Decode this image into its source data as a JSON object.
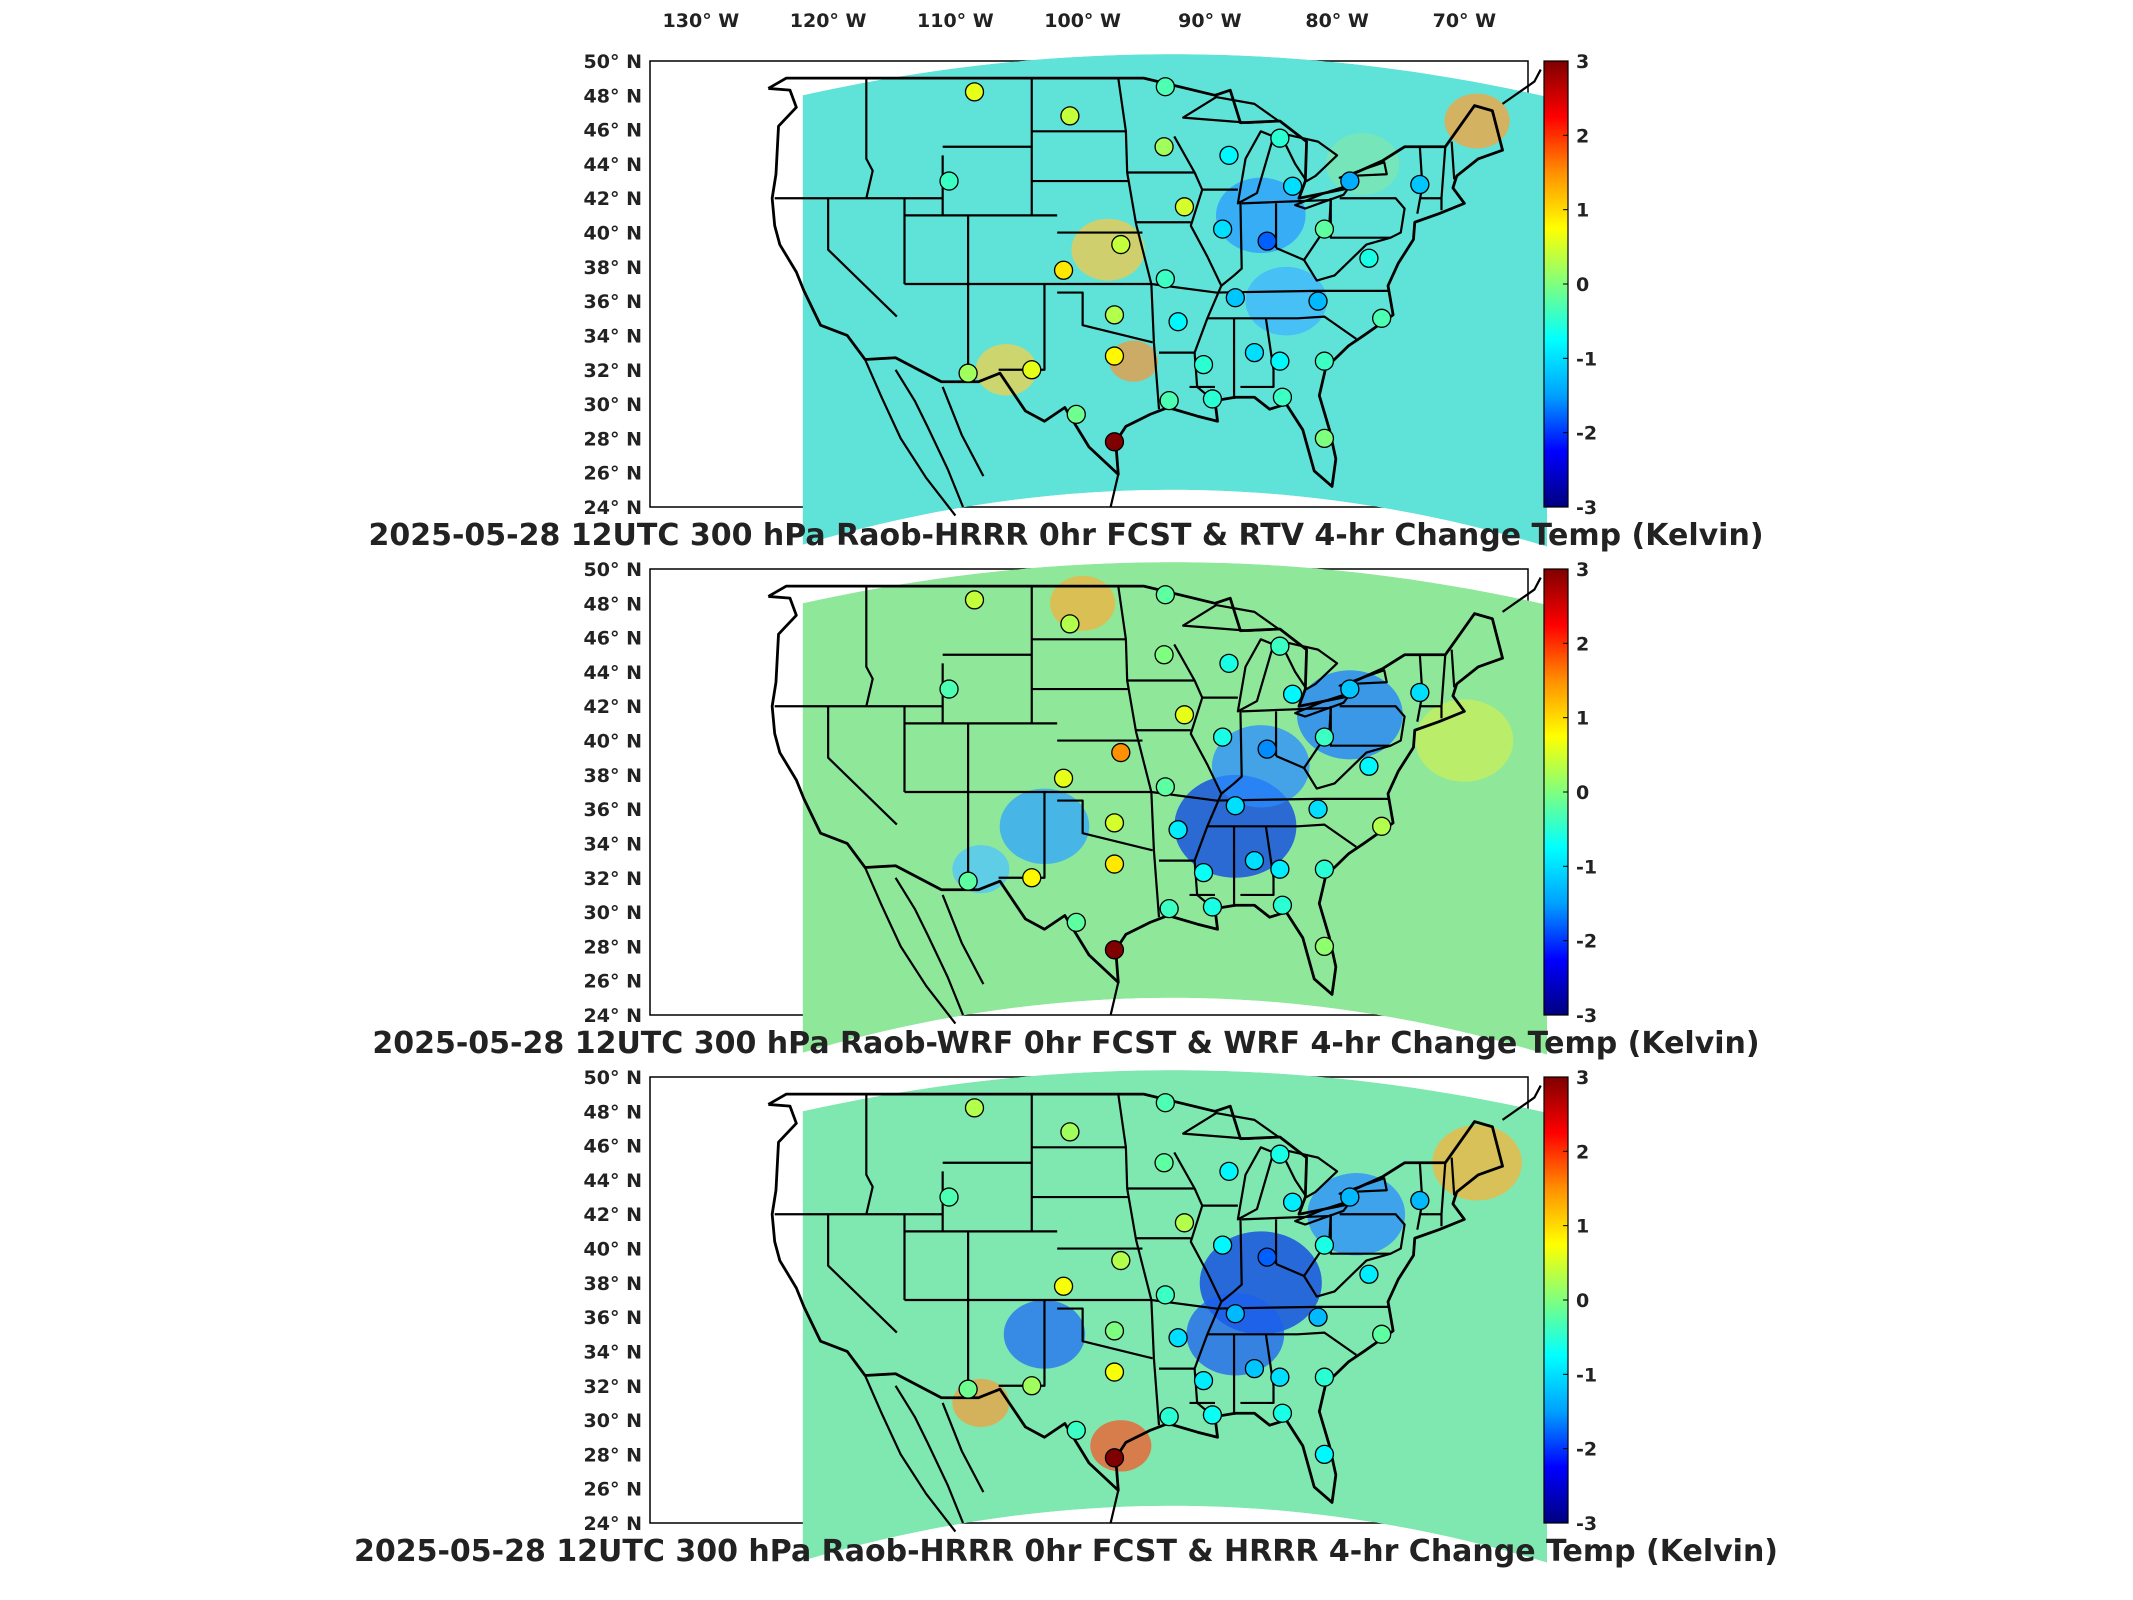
{
  "lon_labels": [
    "130° W",
    "120° W",
    "110° W",
    "100° W",
    "90° W",
    "80° W",
    "70° W"
  ],
  "lat_labels": [
    "50° N",
    "48° N",
    "46° N",
    "44° N",
    "42° N",
    "40° N",
    "38° N",
    "36° N",
    "34° N",
    "32° N",
    "30° N",
    "28° N",
    "26° N",
    "24° N"
  ],
  "colorbar": {
    "ticks": [
      "3",
      "2",
      "1",
      "0",
      "-1",
      "-2",
      "-3"
    ],
    "min": -3,
    "max": 3,
    "colormap": "jet",
    "colors": [
      "#00007f",
      "#0000ff",
      "#00a0ff",
      "#00ffff",
      "#7fff7f",
      "#ffff00",
      "#ff9000",
      "#ff0000",
      "#7f0000"
    ]
  },
  "panels": [
    {
      "title": "2025-05-28 12UTC 300 hPa Raob-HRRR 0hr FCST & RTV 4-hr Change Temp (Kelvin)",
      "field_color": "#5fe3d8",
      "blotches": [
        {
          "lon": -86,
          "lat": 41,
          "r": 2.2,
          "color": "#2a9bff"
        },
        {
          "lon": -98,
          "lat": 39,
          "r": 1.8,
          "color": "#f5c84a"
        },
        {
          "lon": -69,
          "lat": 46.5,
          "r": 1.6,
          "color": "#f9a23a"
        },
        {
          "lon": -106,
          "lat": 32,
          "r": 1.5,
          "color": "#f1d04b"
        },
        {
          "lon": -96,
          "lat": 32.5,
          "r": 1.2,
          "color": "#ef9840"
        },
        {
          "lon": -84,
          "lat": 36,
          "r": 2.0,
          "color": "#3fb4ff"
        },
        {
          "lon": -78,
          "lat": 44,
          "r": 1.8,
          "color": "#7fe6b0"
        }
      ],
      "stations": [
        {
          "lon": -108.5,
          "lat": 48.2,
          "v": 0.6
        },
        {
          "lon": -101,
          "lat": 46.8,
          "v": 0.4
        },
        {
          "lon": -93.5,
          "lat": 48.5,
          "v": -0.3
        },
        {
          "lon": -93.6,
          "lat": 45,
          "v": 0.2
        },
        {
          "lon": -88.5,
          "lat": 44.5,
          "v": -0.8
        },
        {
          "lon": -84.5,
          "lat": 45.5,
          "v": -0.5
        },
        {
          "lon": -83.5,
          "lat": 42.7,
          "v": -1.0
        },
        {
          "lon": -79,
          "lat": 43,
          "v": -1.4
        },
        {
          "lon": -73.5,
          "lat": 42.8,
          "v": -1.2
        },
        {
          "lon": -110.5,
          "lat": 43,
          "v": -0.4
        },
        {
          "lon": -92,
          "lat": 41.5,
          "v": 0.5
        },
        {
          "lon": -89,
          "lat": 40.2,
          "v": -1.0
        },
        {
          "lon": -85.5,
          "lat": 39.5,
          "v": -1.8
        },
        {
          "lon": -81,
          "lat": 40.2,
          "v": -0.2
        },
        {
          "lon": -97,
          "lat": 39.3,
          "v": 0.4
        },
        {
          "lon": -101.5,
          "lat": 37.8,
          "v": 0.9
        },
        {
          "lon": -93.5,
          "lat": 37.3,
          "v": -0.4
        },
        {
          "lon": -77.5,
          "lat": 38.5,
          "v": -0.6
        },
        {
          "lon": -97.5,
          "lat": 35.2,
          "v": 0.3
        },
        {
          "lon": -92.5,
          "lat": 34.8,
          "v": -0.8
        },
        {
          "lon": -88,
          "lat": 36.2,
          "v": -1.2
        },
        {
          "lon": -81.5,
          "lat": 36,
          "v": -1.3
        },
        {
          "lon": -76.5,
          "lat": 35,
          "v": -0.3
        },
        {
          "lon": -104,
          "lat": 32,
          "v": 0.6
        },
        {
          "lon": -109,
          "lat": 31.8,
          "v": 0.2
        },
        {
          "lon": -97.5,
          "lat": 32.8,
          "v": 0.8
        },
        {
          "lon": -90.5,
          "lat": 32.3,
          "v": -0.5
        },
        {
          "lon": -86.5,
          "lat": 33,
          "v": -1.0
        },
        {
          "lon": -84.5,
          "lat": 32.5,
          "v": -0.8
        },
        {
          "lon": -81,
          "lat": 32.5,
          "v": -0.4
        },
        {
          "lon": -100.5,
          "lat": 29.4,
          "v": -0.1
        },
        {
          "lon": -97.5,
          "lat": 27.8,
          "v": 3.0
        },
        {
          "lon": -93.2,
          "lat": 30.2,
          "v": -0.3
        },
        {
          "lon": -89.8,
          "lat": 30.3,
          "v": -0.5
        },
        {
          "lon": -84.3,
          "lat": 30.4,
          "v": -0.4
        },
        {
          "lon": -81,
          "lat": 28,
          "v": 0.0
        }
      ]
    },
    {
      "title": "2025-05-28 12UTC 300 hPa Raob-WRF 0hr FCST & WRF 4-hr Change Temp (Kelvin)",
      "field_color": "#8fe89a",
      "blotches": [
        {
          "lon": -88,
          "lat": 35,
          "r": 3.0,
          "color": "#0a3fe6"
        },
        {
          "lon": -79,
          "lat": 41.5,
          "r": 2.6,
          "color": "#1d7dff"
        },
        {
          "lon": -86,
          "lat": 38.5,
          "r": 2.4,
          "color": "#2a8cff"
        },
        {
          "lon": -103,
          "lat": 35,
          "r": 2.2,
          "color": "#2fa6ff"
        },
        {
          "lon": -100,
          "lat": 48,
          "r": 1.6,
          "color": "#f3b23c"
        },
        {
          "lon": -70,
          "lat": 40,
          "r": 2.4,
          "color": "#c8f05a"
        },
        {
          "lon": -108,
          "lat": 32.5,
          "r": 1.4,
          "color": "#4fc4ff"
        }
      ],
      "stations": [
        {
          "lon": -108.5,
          "lat": 48.2,
          "v": 0.4
        },
        {
          "lon": -101,
          "lat": 46.8,
          "v": 0.3
        },
        {
          "lon": -93.5,
          "lat": 48.5,
          "v": -0.2
        },
        {
          "lon": -93.6,
          "lat": 45,
          "v": 0.0
        },
        {
          "lon": -88.5,
          "lat": 44.5,
          "v": -0.6
        },
        {
          "lon": -84.5,
          "lat": 45.5,
          "v": -0.4
        },
        {
          "lon": -83.5,
          "lat": 42.7,
          "v": -0.8
        },
        {
          "lon": -79,
          "lat": 43,
          "v": -1.2
        },
        {
          "lon": -73.5,
          "lat": 42.8,
          "v": -1.0
        },
        {
          "lon": -110.5,
          "lat": 43,
          "v": -0.3
        },
        {
          "lon": -92,
          "lat": 41.5,
          "v": 0.6
        },
        {
          "lon": -89,
          "lat": 40.2,
          "v": -0.6
        },
        {
          "lon": -85.5,
          "lat": 39.5,
          "v": -1.6
        },
        {
          "lon": -81,
          "lat": 40.2,
          "v": -0.4
        },
        {
          "lon": -97,
          "lat": 39.3,
          "v": 1.5
        },
        {
          "lon": -101.5,
          "lat": 37.8,
          "v": 0.6
        },
        {
          "lon": -93.5,
          "lat": 37.3,
          "v": -0.2
        },
        {
          "lon": -77.5,
          "lat": 38.5,
          "v": -0.8
        },
        {
          "lon": -97.5,
          "lat": 35.2,
          "v": 0.5
        },
        {
          "lon": -92.5,
          "lat": 34.8,
          "v": -0.9
        },
        {
          "lon": -88,
          "lat": 36.2,
          "v": -1.0
        },
        {
          "lon": -81.5,
          "lat": 36,
          "v": -1.0
        },
        {
          "lon": -76.5,
          "lat": 35,
          "v": 0.3
        },
        {
          "lon": -104,
          "lat": 32,
          "v": 0.8
        },
        {
          "lon": -109,
          "lat": 31.8,
          "v": -0.2
        },
        {
          "lon": -97.5,
          "lat": 32.8,
          "v": 0.9
        },
        {
          "lon": -90.5,
          "lat": 32.3,
          "v": -0.7
        },
        {
          "lon": -86.5,
          "lat": 33,
          "v": -1.0
        },
        {
          "lon": -84.5,
          "lat": 32.5,
          "v": -0.9
        },
        {
          "lon": -81,
          "lat": 32.5,
          "v": -0.5
        },
        {
          "lon": -100.5,
          "lat": 29.4,
          "v": -0.2
        },
        {
          "lon": -97.5,
          "lat": 27.8,
          "v": 3.0
        },
        {
          "lon": -93.2,
          "lat": 30.2,
          "v": -0.4
        },
        {
          "lon": -89.8,
          "lat": 30.3,
          "v": -0.6
        },
        {
          "lon": -84.3,
          "lat": 30.4,
          "v": -0.5
        },
        {
          "lon": -81,
          "lat": 28,
          "v": 0.1
        }
      ]
    },
    {
      "title": "2025-05-28 12UTC 300 hPa Raob-HRRR 0hr FCST & HRRR 4-hr Change Temp (Kelvin)",
      "field_color": "#7fe8b0",
      "blotches": [
        {
          "lon": -86,
          "lat": 38,
          "r": 3.0,
          "color": "#0a3fe6"
        },
        {
          "lon": -88,
          "lat": 35,
          "r": 2.4,
          "color": "#1d60f0"
        },
        {
          "lon": -78.5,
          "lat": 42,
          "r": 2.4,
          "color": "#2a8cff"
        },
        {
          "lon": -103,
          "lat": 35,
          "r": 2.0,
          "color": "#1f6cf5"
        },
        {
          "lon": -97,
          "lat": 28.5,
          "r": 1.5,
          "color": "#f45a2a"
        },
        {
          "lon": -69,
          "lat": 45,
          "r": 2.2,
          "color": "#f6b43c"
        },
        {
          "lon": -108,
          "lat": 31,
          "r": 1.4,
          "color": "#f0a040"
        }
      ],
      "stations": [
        {
          "lon": -108.5,
          "lat": 48.2,
          "v": 0.3
        },
        {
          "lon": -101,
          "lat": 46.8,
          "v": 0.2
        },
        {
          "lon": -93.5,
          "lat": 48.5,
          "v": -0.3
        },
        {
          "lon": -93.6,
          "lat": 45,
          "v": -0.2
        },
        {
          "lon": -88.5,
          "lat": 44.5,
          "v": -0.8
        },
        {
          "lon": -84.5,
          "lat": 45.5,
          "v": -0.6
        },
        {
          "lon": -83.5,
          "lat": 42.7,
          "v": -0.9
        },
        {
          "lon": -79,
          "lat": 43,
          "v": -1.3
        },
        {
          "lon": -73.5,
          "lat": 42.8,
          "v": -1.3
        },
        {
          "lon": -110.5,
          "lat": 43,
          "v": -0.3
        },
        {
          "lon": -92,
          "lat": 41.5,
          "v": 0.3
        },
        {
          "lon": -89,
          "lat": 40.2,
          "v": -0.8
        },
        {
          "lon": -85.5,
          "lat": 39.5,
          "v": -1.8
        },
        {
          "lon": -81,
          "lat": 40.2,
          "v": -0.6
        },
        {
          "lon": -97,
          "lat": 39.3,
          "v": 0.3
        },
        {
          "lon": -101.5,
          "lat": 37.8,
          "v": 0.7
        },
        {
          "lon": -93.5,
          "lat": 37.3,
          "v": -0.4
        },
        {
          "lon": -77.5,
          "lat": 38.5,
          "v": -0.9
        },
        {
          "lon": -97.5,
          "lat": 35.2,
          "v": 0.0
        },
        {
          "lon": -92.5,
          "lat": 34.8,
          "v": -1.0
        },
        {
          "lon": -88,
          "lat": 36.2,
          "v": -1.3
        },
        {
          "lon": -81.5,
          "lat": 36,
          "v": -1.3
        },
        {
          "lon": -76.5,
          "lat": 35,
          "v": -0.2
        },
        {
          "lon": -104,
          "lat": 32,
          "v": 0.2
        },
        {
          "lon": -109,
          "lat": 31.8,
          "v": -0.1
        },
        {
          "lon": -97.5,
          "lat": 32.8,
          "v": 0.7
        },
        {
          "lon": -90.5,
          "lat": 32.3,
          "v": -0.9
        },
        {
          "lon": -86.5,
          "lat": 33,
          "v": -1.2
        },
        {
          "lon": -84.5,
          "lat": 32.5,
          "v": -1.0
        },
        {
          "lon": -81,
          "lat": 32.5,
          "v": -0.5
        },
        {
          "lon": -100.5,
          "lat": 29.4,
          "v": -0.4
        },
        {
          "lon": -97.5,
          "lat": 27.8,
          "v": 3.0
        },
        {
          "lon": -93.2,
          "lat": 30.2,
          "v": -0.5
        },
        {
          "lon": -89.8,
          "lat": 30.3,
          "v": -0.7
        },
        {
          "lon": -84.3,
          "lat": 30.4,
          "v": -0.6
        },
        {
          "lon": -81,
          "lat": 28,
          "v": -0.8
        }
      ]
    }
  ]
}
